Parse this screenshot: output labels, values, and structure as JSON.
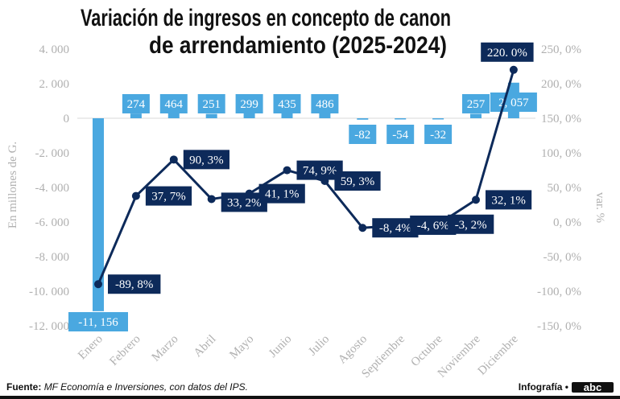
{
  "chart_data": {
    "type": "bar+line",
    "title_lines": [
      "Variación de ingresos en concepto de canon",
      "de arrendamiento (2025-2024)"
    ],
    "categories": [
      "Enero",
      "Febrero",
      "Marzo",
      "Abril",
      "Mayo",
      "Junio",
      "Julio",
      "Agosto",
      "Septiembre",
      "Octubre",
      "Noviembre",
      "Diciembre"
    ],
    "bar_series": {
      "values": [
        -11156,
        274,
        464,
        251,
        299,
        435,
        486,
        -82,
        -54,
        -32,
        257,
        2057
      ],
      "labels": [
        "-11, 156",
        "274",
        "464",
        "251",
        "299",
        "435",
        "486",
        "-82",
        "-54",
        "-32",
        "257",
        "2, 057"
      ],
      "color": "#4aa8e0"
    },
    "line_series": {
      "values": [
        -89.8,
        37.7,
        90.3,
        33.2,
        41.1,
        74.9,
        59.3,
        -8.4,
        -4.6,
        -3.2,
        32.1,
        220.0
      ],
      "labels": [
        "-89, 8%",
        "37, 7%",
        "90, 3%",
        "33, 2%",
        "41, 1%",
        "74, 9%",
        "59, 3%",
        "-8, 4%",
        "-4, 6%",
        "-3, 2%",
        "32, 1%",
        "220. 0%"
      ],
      "color": "#0d2a5a"
    },
    "ylabel_left": "En millones de G.",
    "ylabel_right": "var. %",
    "ylim_left": [
      -12000,
      4000
    ],
    "ylim_right": [
      -150,
      250
    ],
    "left_ticks": [
      "4. 000",
      "2. 000",
      "0",
      "-2. 000",
      "-4. 000",
      "-6. 000",
      "-8. 000",
      "-10. 000",
      "-12. 000"
    ],
    "right_ticks": [
      "250, 0%",
      "200, 0%",
      "150, 0%",
      "100, 0%",
      "50, 0%",
      "0, 0%",
      "-50, 0%",
      "-100, 0%",
      "-150, 0%"
    ]
  },
  "footer": {
    "source_label": "Fuente:",
    "source_text": "MF Economía e Inversiones, con datos del IPS.",
    "credit": "Infografía •",
    "logo": "abc"
  }
}
